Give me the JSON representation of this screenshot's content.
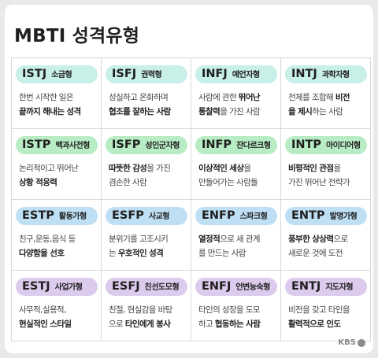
{
  "title": "MBTI 성격유형",
  "logo": "KBS",
  "types": [
    {
      "code": "ISTJ",
      "name": "소금형",
      "lines": [
        [
          {
            "t": "한번 시작한 일은",
            "b": false
          }
        ],
        [
          {
            "t": "끝까지 해내는 성격",
            "b": true
          }
        ]
      ]
    },
    {
      "code": "ISFJ",
      "name": "권력형",
      "lines": [
        [
          {
            "t": "성실하고 온화하며",
            "b": false
          }
        ],
        [
          {
            "t": "협조를 잘하는 사람",
            "b": true
          }
        ]
      ]
    },
    {
      "code": "INFJ",
      "name": "예언자형",
      "lines": [
        [
          {
            "t": "사람에 관한 ",
            "b": false
          },
          {
            "t": "뛰어난",
            "b": true
          }
        ],
        [
          {
            "t": "통찰력",
            "b": true
          },
          {
            "t": "을 가진 사람",
            "b": false
          }
        ]
      ]
    },
    {
      "code": "INTJ",
      "name": "과학자형",
      "lines": [
        [
          {
            "t": "전체를 조합해 ",
            "b": false
          },
          {
            "t": "비전",
            "b": true
          }
        ],
        [
          {
            "t": "을 제시",
            "b": true
          },
          {
            "t": "하는 사람",
            "b": false
          }
        ]
      ]
    },
    {
      "code": "ISTP",
      "name": "백과사전형",
      "lines": [
        [
          {
            "t": "논리적이고 뛰어난",
            "b": false
          }
        ],
        [
          {
            "t": "상황 적응력",
            "b": true
          }
        ]
      ]
    },
    {
      "code": "ISFP",
      "name": "성인군자형",
      "lines": [
        [
          {
            "t": "따뜻한 감성",
            "b": true
          },
          {
            "t": "을 가진",
            "b": false
          }
        ],
        [
          {
            "t": "겸손한 사람",
            "b": false
          }
        ]
      ]
    },
    {
      "code": "INFP",
      "name": "잔다르크형",
      "lines": [
        [
          {
            "t": "이상적인 세상",
            "b": true
          },
          {
            "t": "을",
            "b": false
          }
        ],
        [
          {
            "t": "만들어가는 사람들",
            "b": false
          }
        ]
      ]
    },
    {
      "code": "INTP",
      "name": "아이디어형",
      "lines": [
        [
          {
            "t": "비평적인 관점",
            "b": true
          },
          {
            "t": "을",
            "b": false
          }
        ],
        [
          {
            "t": "가진 뛰어난 전략가",
            "b": false
          }
        ]
      ]
    },
    {
      "code": "ESTP",
      "name": "활동가형",
      "lines": [
        [
          {
            "t": "친구,운동,음식 등",
            "b": false
          }
        ],
        [
          {
            "t": "다양함을 선호",
            "b": true
          }
        ]
      ]
    },
    {
      "code": "ESFP",
      "name": "사교형",
      "lines": [
        [
          {
            "t": "분위기를 고조시키",
            "b": false
          }
        ],
        [
          {
            "t": "는 ",
            "b": false
          },
          {
            "t": "우호적인 성격",
            "b": true
          }
        ]
      ]
    },
    {
      "code": "ENFP",
      "name": "스파크형",
      "lines": [
        [
          {
            "t": "열정적",
            "b": true
          },
          {
            "t": "으로 새 관계",
            "b": false
          }
        ],
        [
          {
            "t": "를 만드는 사람",
            "b": false
          }
        ]
      ]
    },
    {
      "code": "ENTP",
      "name": "발명가형",
      "lines": [
        [
          {
            "t": "풍부한 상상력",
            "b": true
          },
          {
            "t": "으로",
            "b": false
          }
        ],
        [
          {
            "t": "새로운 것에 도전",
            "b": false
          }
        ]
      ]
    },
    {
      "code": "ESTJ",
      "name": "사업가형",
      "lines": [
        [
          {
            "t": "사무적,실용적,",
            "b": false
          }
        ],
        [
          {
            "t": "현실적인 스타일",
            "b": true
          }
        ]
      ]
    },
    {
      "code": "ESFJ",
      "name": "친선도모형",
      "lines": [
        [
          {
            "t": "친절, 현실감을 바탕",
            "b": false
          }
        ],
        [
          {
            "t": "으로 ",
            "b": false
          },
          {
            "t": "타인에게 봉사",
            "b": true
          }
        ]
      ]
    },
    {
      "code": "ENFJ",
      "name": "언변능숙형",
      "lines": [
        [
          {
            "t": "타인의 성장을 도모",
            "b": false
          }
        ],
        [
          {
            "t": "하고 ",
            "b": false
          },
          {
            "t": "협동하는 사람",
            "b": true
          }
        ]
      ]
    },
    {
      "code": "ENTJ",
      "name": "지도자형",
      "lines": [
        [
          {
            "t": "비전을 갖고 타인을",
            "b": false
          }
        ],
        [
          {
            "t": "활력적으로 인도",
            "b": true
          }
        ]
      ]
    }
  ],
  "colors": {
    "row1": "#c8efe8",
    "row2": "#b8ecc4",
    "row3": "#bfe0f4",
    "row4": "#dccbec"
  }
}
